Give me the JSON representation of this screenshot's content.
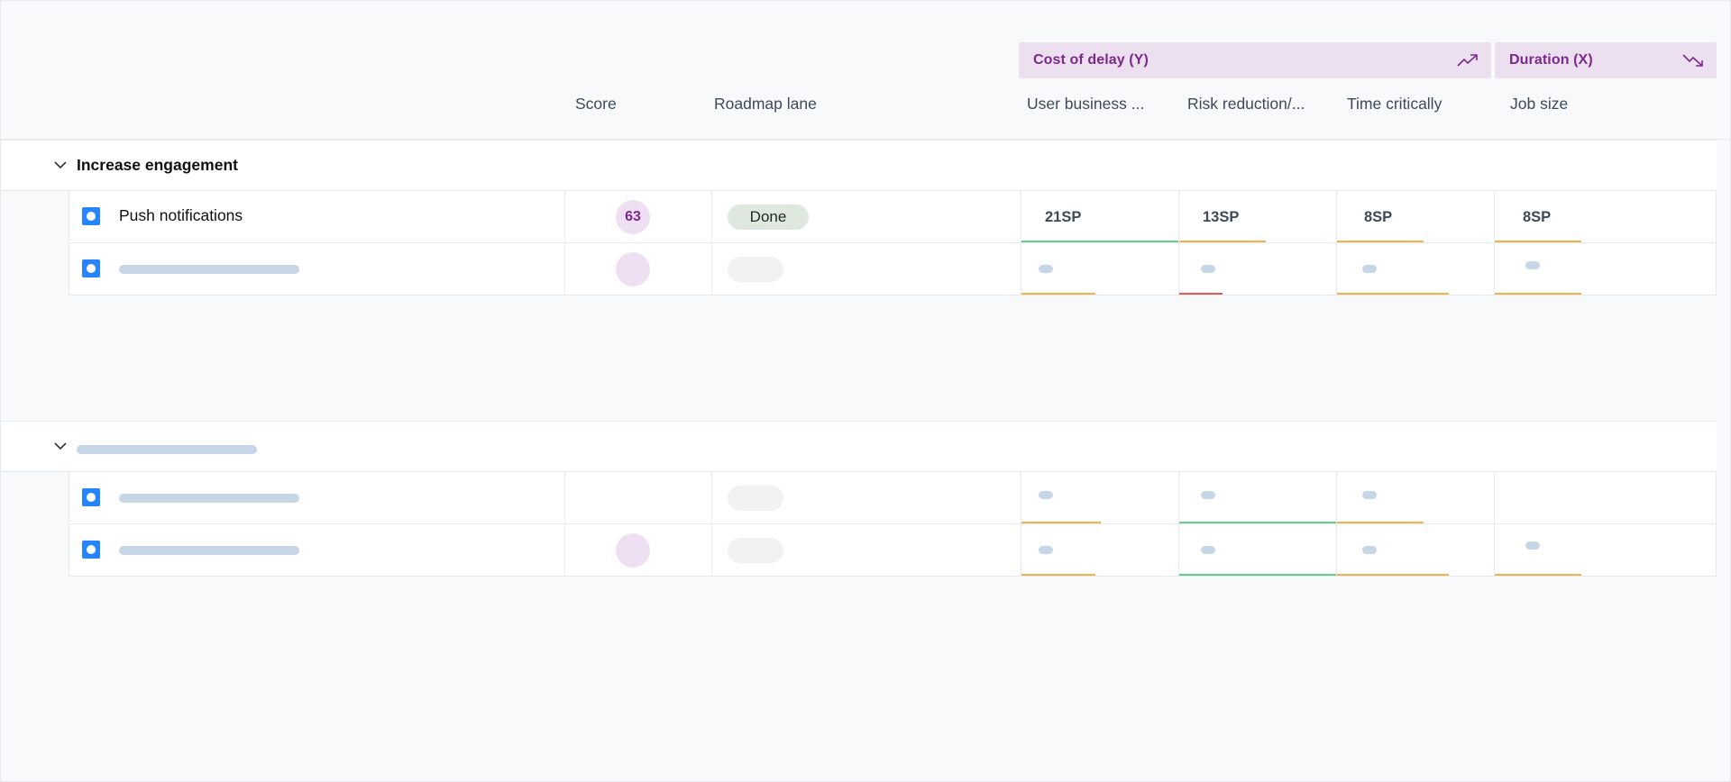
{
  "colors": {
    "accent_purple": "#7a2a8a",
    "group_bg": "#ecdff0",
    "checkbox_blue": "#2684ff",
    "line_green": "#5fcf8a",
    "line_orange": "#f5b14a",
    "line_red": "#e05a4e"
  },
  "header": {
    "cost_of_delay_label": "Cost of delay (Y)",
    "cost_of_delay_icon": "trend-up-icon",
    "duration_label": "Duration (X)",
    "duration_icon": "trend-down-icon",
    "columns": {
      "score": "Score",
      "roadmap_lane": "Roadmap lane",
      "user_business": "User business ...",
      "risk_reduction": "Risk reduction/...",
      "time_critically": "Time critically",
      "job_size": "Job size"
    }
  },
  "sections": [
    {
      "title": "Increase engagement",
      "items": [
        {
          "name": "Push notifications",
          "score": "63",
          "lane": "Done",
          "user_business": "21SP",
          "risk_reduction": "13SP",
          "time_critically": "8SP",
          "job_size": "8SP"
        }
      ]
    }
  ]
}
